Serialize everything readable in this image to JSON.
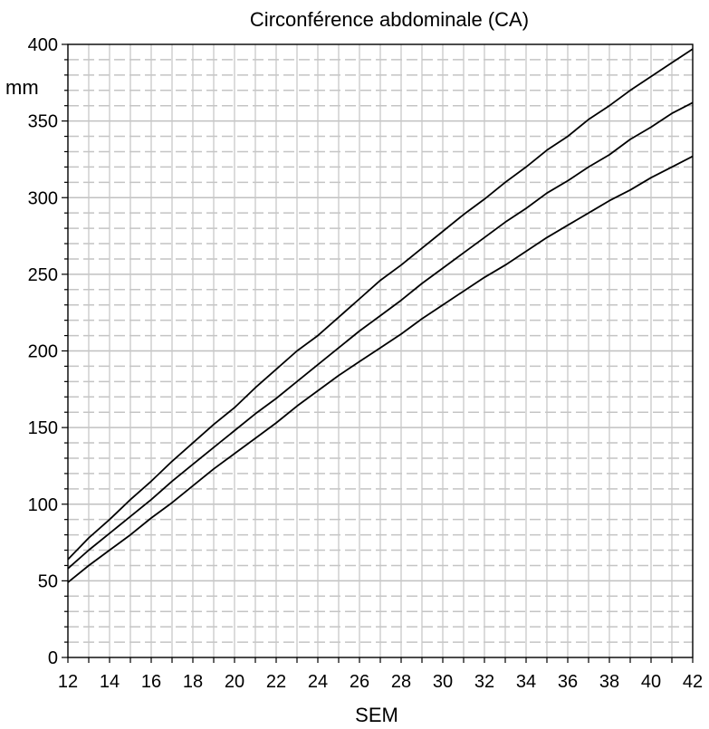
{
  "chart_data": {
    "type": "line",
    "title": "Circonférence abdominale (CA)",
    "xlabel": "SEM",
    "ylabel": "mm",
    "xlim": [
      12,
      42
    ],
    "ylim": [
      0,
      400
    ],
    "x_ticks": [
      12,
      14,
      16,
      18,
      20,
      22,
      24,
      26,
      28,
      30,
      32,
      34,
      36,
      38,
      40,
      42
    ],
    "y_ticks": [
      0,
      50,
      100,
      150,
      200,
      250,
      300,
      350,
      400
    ],
    "grid": {
      "x_major_step": 1,
      "y_minor_step": 10,
      "y_major_step": 50
    },
    "x": [
      12,
      13,
      14,
      15,
      16,
      17,
      18,
      19,
      20,
      21,
      22,
      23,
      24,
      25,
      26,
      27,
      28,
      29,
      30,
      31,
      32,
      33,
      34,
      35,
      36,
      37,
      38,
      39,
      40,
      41,
      42
    ],
    "series": [
      {
        "values": [
          64,
          78,
          90,
          103,
          115,
          128,
          140,
          152,
          163,
          176,
          188,
          200,
          210,
          222,
          234,
          246,
          256,
          267,
          278,
          289,
          299,
          310,
          320,
          331,
          340,
          351,
          360,
          370,
          379,
          388,
          397
        ]
      },
      {
        "values": [
          58,
          70,
          81,
          92,
          103,
          115,
          126,
          137,
          148,
          159,
          169,
          180,
          191,
          202,
          213,
          223,
          233,
          244,
          254,
          264,
          274,
          284,
          293,
          303,
          311,
          320,
          328,
          338,
          346,
          355,
          362
        ]
      },
      {
        "values": [
          49,
          60,
          70,
          80,
          91,
          101,
          112,
          123,
          133,
          143,
          153,
          164,
          174,
          184,
          193,
          202,
          211,
          221,
          230,
          239,
          248,
          256,
          265,
          274,
          282,
          290,
          298,
          305,
          313,
          320,
          327
        ]
      }
    ]
  }
}
